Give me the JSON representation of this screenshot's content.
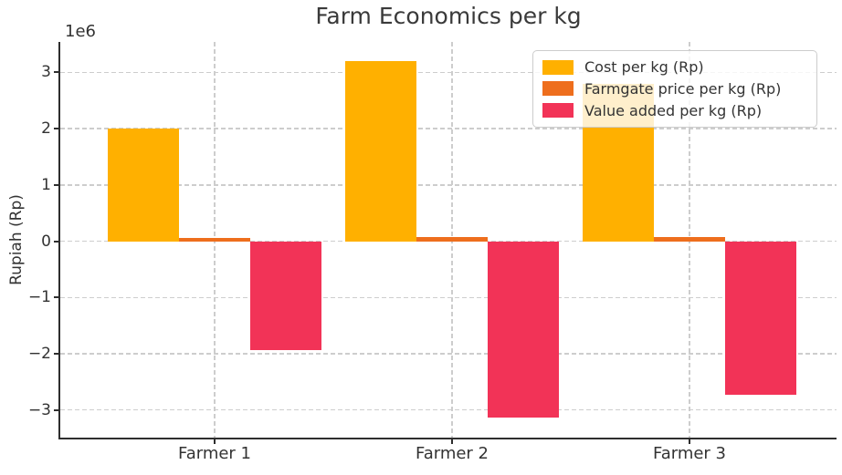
{
  "figure": {
    "background_color": "#ffffff",
    "text_color": "#333333",
    "grid_color": "#cdcdcd",
    "spine_color": "#2e2e2e"
  },
  "chart_data": {
    "type": "bar",
    "title": "Farm Economics per kg",
    "ylabel": "Rupiah (Rp)",
    "xlabel": "",
    "offset_text": "1e6",
    "categories": [
      "Farmer 1",
      "Farmer 2",
      "Farmer 3"
    ],
    "series": [
      {
        "name": "Cost per kg (Rp)",
        "color": "#FFB000",
        "values": [
          2000000,
          3200000,
          2800000
        ]
      },
      {
        "name": "Farmgate price per kg (Rp)",
        "color": "#EE6E1D",
        "values": [
          60000,
          70000,
          70000
        ]
      },
      {
        "name": "Value added per kg (Rp)",
        "color": "#F23357",
        "values": [
          -1940000,
          -3130000,
          -2730000
        ]
      }
    ],
    "y_ticks": [
      {
        "label": "3",
        "value": 3000000
      },
      {
        "label": "2",
        "value": 2000000
      },
      {
        "label": "1",
        "value": 1000000
      },
      {
        "label": "0",
        "value": 0
      },
      {
        "label": "−1",
        "value": -1000000
      },
      {
        "label": "−2",
        "value": -2000000
      },
      {
        "label": "−3",
        "value": -3000000
      }
    ],
    "ylim": [
      -3490000,
      3540000
    ],
    "grid": true,
    "grid_style": "dashed",
    "legend_position": "upper right"
  }
}
